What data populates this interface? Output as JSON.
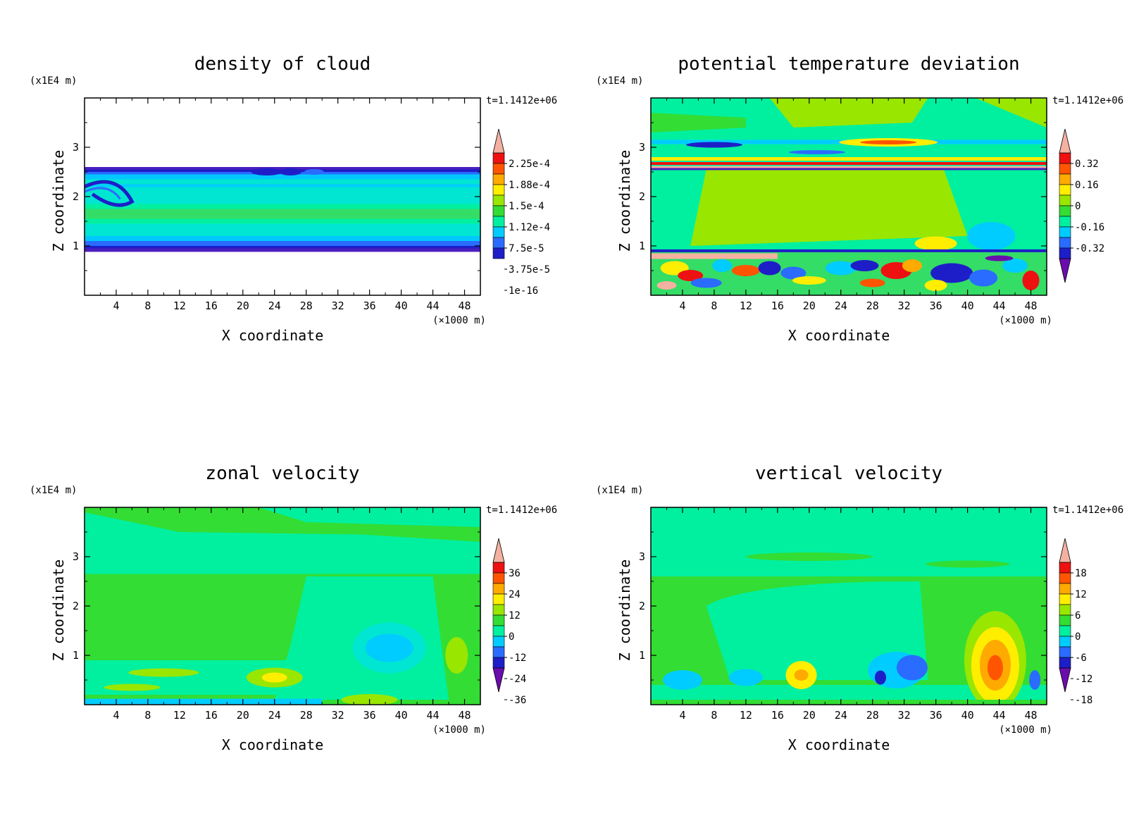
{
  "chart_data": [
    {
      "type": "heatmap",
      "title": "density of cloud",
      "xlabel": "X coordinate",
      "ylabel": "Z coordinate",
      "x_unit": "(×1000 m)",
      "y_unit": "(x1E4 m)",
      "time_label": "t=1.1412e+06",
      "xlim": [
        0,
        50
      ],
      "ylim": [
        0,
        4
      ],
      "x_ticks": [
        "4",
        "8",
        "12",
        "16",
        "20",
        "24",
        "28",
        "32",
        "36",
        "40",
        "44",
        "48"
      ],
      "y_ticks": [
        "1",
        "2",
        "3"
      ],
      "colorbar": {
        "levels": [
          "2.25e-4",
          "1.88e-4",
          "1.5e-4",
          "1.12e-4",
          "7.5e-5",
          "3.75e-5",
          "1e-16"
        ],
        "palette": [
          "#6a0dad",
          "#1e1ec8",
          "#2a6cff",
          "#00ccff",
          "#00f0a0",
          "#33dd33",
          "#99e600",
          "#ffee00",
          "#ffaa00",
          "#ff5500",
          "#ee1111",
          "#f4b0a0"
        ],
        "ends": "upper-arrow"
      },
      "field_description": "cloud layer between z=0.9 and z=2.6 (x1E4 m), blue edges, cyan-green interior"
    },
    {
      "type": "heatmap",
      "title": "potential temperature deviation",
      "xlabel": "X coordinate",
      "ylabel": "Z coordinate",
      "x_unit": "(×1000 m)",
      "y_unit": "(x1E4 m)",
      "time_label": "t=1.1412e+06",
      "xlim": [
        0,
        50
      ],
      "ylim": [
        0,
        4
      ],
      "x_ticks": [
        "4",
        "8",
        "12",
        "16",
        "20",
        "24",
        "28",
        "32",
        "36",
        "40",
        "44",
        "48"
      ],
      "y_ticks": [
        "1",
        "2",
        "3"
      ],
      "colorbar": {
        "levels": [
          "0.32",
          "0.16",
          "0",
          "-0.16",
          "-0.32"
        ],
        "palette": [
          "#6a0dad",
          "#1e1ec8",
          "#2a6cff",
          "#00ccff",
          "#00f0a0",
          "#33dd33",
          "#99e600",
          "#ffee00",
          "#ffaa00",
          "#ff5500",
          "#ee1111",
          "#f4b0a0"
        ],
        "ends": "both-arrows"
      }
    },
    {
      "type": "heatmap",
      "title": "zonal velocity",
      "xlabel": "X coordinate",
      "ylabel": "Z coordinate",
      "x_unit": "(×1000 m)",
      "y_unit": "(x1E4 m)",
      "time_label": "t=1.1412e+06",
      "xlim": [
        0,
        50
      ],
      "ylim": [
        0,
        4
      ],
      "x_ticks": [
        "4",
        "8",
        "12",
        "16",
        "20",
        "24",
        "28",
        "32",
        "36",
        "40",
        "44",
        "48"
      ],
      "y_ticks": [
        "1",
        "2",
        "3"
      ],
      "colorbar": {
        "levels": [
          "36",
          "24",
          "12",
          "0",
          "-12",
          "-24",
          "-36"
        ],
        "palette": [
          "#6a0dad",
          "#1e1ec8",
          "#2a6cff",
          "#00ccff",
          "#00f0a0",
          "#33dd33",
          "#99e600",
          "#ffee00",
          "#ffaa00",
          "#ff5500",
          "#ee1111",
          "#f4b0a0"
        ],
        "ends": "both-arrows"
      }
    },
    {
      "type": "heatmap",
      "title": "vertical velocity",
      "xlabel": "X coordinate",
      "ylabel": "Z coordinate",
      "x_unit": "(×1000 m)",
      "y_unit": "(x1E4 m)",
      "time_label": "t=1.1412e+06",
      "xlim": [
        0,
        50
      ],
      "ylim": [
        0,
        4
      ],
      "x_ticks": [
        "4",
        "8",
        "12",
        "16",
        "20",
        "24",
        "28",
        "32",
        "36",
        "40",
        "44",
        "48"
      ],
      "y_ticks": [
        "1",
        "2",
        "3"
      ],
      "colorbar": {
        "levels": [
          "18",
          "12",
          "6",
          "0",
          "-6",
          "-12",
          "-18"
        ],
        "palette": [
          "#6a0dad",
          "#1e1ec8",
          "#2a6cff",
          "#00ccff",
          "#00f0a0",
          "#33dd33",
          "#99e600",
          "#ffee00",
          "#ffaa00",
          "#ff5500",
          "#ee1111",
          "#f4b0a0"
        ],
        "ends": "both-arrows"
      }
    }
  ]
}
